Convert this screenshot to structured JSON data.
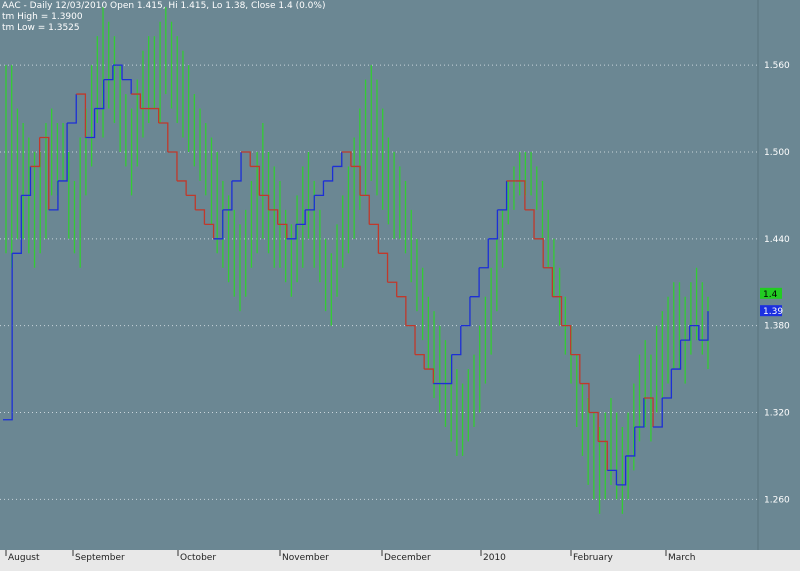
{
  "header": {
    "line1": "AAC - Daily 12/03/2010 Open 1.415, Hi 1.415, Lo 1.38, Close 1.4 (0.0%)",
    "line2": "tm High = 1.3900",
    "line3": "tm Low = 1.3525"
  },
  "colors": {
    "background": "#6b8793",
    "bar": "#33cc33",
    "trail_up": "#1c2fd6",
    "trail_down": "#c0392b",
    "grid": "#c8d4da",
    "text": "#ffffff",
    "axis_bg": "#e8e8e8",
    "tag_close": "#22cc22",
    "tag_low": "#1b2fe0"
  },
  "chart_data": {
    "type": "ohlc",
    "grid": true,
    "ylim": [
      1.225,
      1.605
    ],
    "y_ticks": [
      "1.560",
      "1.500",
      "1.440",
      "1.380",
      "1.320",
      "1.260"
    ],
    "x_labels": [
      "August",
      "September",
      "October",
      "November",
      "December",
      "2010",
      "February",
      "March"
    ],
    "price_tags": [
      {
        "label": "1.4",
        "value": 1.402,
        "color": "#22cc22"
      },
      {
        "label": "1.39",
        "value": 1.39,
        "color": "#1b2fe0"
      }
    ],
    "bars": [
      [
        1.56,
        1.43
      ],
      [
        1.56,
        1.42
      ],
      [
        1.53,
        1.44
      ],
      [
        1.52,
        1.44
      ],
      [
        1.51,
        1.43
      ],
      [
        1.5,
        1.42
      ],
      [
        1.5,
        1.43
      ],
      [
        1.52,
        1.44
      ],
      [
        1.53,
        1.47
      ],
      [
        1.52,
        1.47
      ],
      [
        1.52,
        1.48
      ],
      [
        1.5,
        1.44
      ],
      [
        1.48,
        1.43
      ],
      [
        1.51,
        1.42
      ],
      [
        1.53,
        1.47
      ],
      [
        1.56,
        1.49
      ],
      [
        1.58,
        1.52
      ],
      [
        1.6,
        1.51
      ],
      [
        1.59,
        1.53
      ],
      [
        1.58,
        1.52
      ],
      [
        1.56,
        1.5
      ],
      [
        1.54,
        1.49
      ],
      [
        1.53,
        1.47
      ],
      [
        1.55,
        1.49
      ],
      [
        1.57,
        1.51
      ],
      [
        1.58,
        1.52
      ],
      [
        1.58,
        1.53
      ],
      [
        1.59,
        1.52
      ],
      [
        1.6,
        1.54
      ],
      [
        1.59,
        1.53
      ],
      [
        1.58,
        1.52
      ],
      [
        1.57,
        1.51
      ],
      [
        1.56,
        1.5
      ],
      [
        1.54,
        1.49
      ],
      [
        1.53,
        1.48
      ],
      [
        1.52,
        1.47
      ],
      [
        1.51,
        1.45
      ],
      [
        1.5,
        1.43
      ],
      [
        1.48,
        1.42
      ],
      [
        1.47,
        1.41
      ],
      [
        1.46,
        1.4
      ],
      [
        1.45,
        1.39
      ],
      [
        1.46,
        1.4
      ],
      [
        1.48,
        1.42
      ],
      [
        1.5,
        1.43
      ],
      [
        1.52,
        1.44
      ],
      [
        1.5,
        1.43
      ],
      [
        1.49,
        1.42
      ],
      [
        1.48,
        1.42
      ],
      [
        1.46,
        1.41
      ],
      [
        1.45,
        1.4
      ],
      [
        1.47,
        1.41
      ],
      [
        1.49,
        1.42
      ],
      [
        1.5,
        1.44
      ],
      [
        1.48,
        1.42
      ],
      [
        1.46,
        1.41
      ],
      [
        1.44,
        1.39
      ],
      [
        1.43,
        1.38
      ],
      [
        1.45,
        1.4
      ],
      [
        1.47,
        1.42
      ],
      [
        1.49,
        1.43
      ],
      [
        1.51,
        1.44
      ],
      [
        1.53,
        1.46
      ],
      [
        1.55,
        1.47
      ],
      [
        1.56,
        1.48
      ],
      [
        1.55,
        1.47
      ],
      [
        1.53,
        1.46
      ],
      [
        1.51,
        1.45
      ],
      [
        1.5,
        1.44
      ],
      [
        1.49,
        1.44
      ],
      [
        1.48,
        1.43
      ],
      [
        1.46,
        1.41
      ],
      [
        1.44,
        1.39
      ],
      [
        1.42,
        1.37
      ],
      [
        1.4,
        1.35
      ],
      [
        1.39,
        1.33
      ],
      [
        1.38,
        1.32
      ],
      [
        1.37,
        1.31
      ],
      [
        1.36,
        1.3
      ],
      [
        1.35,
        1.29
      ],
      [
        1.34,
        1.29
      ],
      [
        1.35,
        1.3
      ],
      [
        1.36,
        1.31
      ],
      [
        1.38,
        1.32
      ],
      [
        1.4,
        1.34
      ],
      [
        1.42,
        1.36
      ],
      [
        1.44,
        1.39
      ],
      [
        1.46,
        1.42
      ],
      [
        1.48,
        1.45
      ],
      [
        1.49,
        1.46
      ],
      [
        1.5,
        1.47
      ],
      [
        1.5,
        1.47
      ],
      [
        1.5,
        1.47
      ],
      [
        1.49,
        1.46
      ],
      [
        1.48,
        1.44
      ],
      [
        1.46,
        1.42
      ],
      [
        1.44,
        1.4
      ],
      [
        1.42,
        1.38
      ],
      [
        1.4,
        1.36
      ],
      [
        1.38,
        1.34
      ],
      [
        1.36,
        1.31
      ],
      [
        1.34,
        1.29
      ],
      [
        1.33,
        1.27
      ],
      [
        1.32,
        1.26
      ],
      [
        1.31,
        1.25
      ],
      [
        1.32,
        1.26
      ],
      [
        1.33,
        1.27
      ],
      [
        1.32,
        1.26
      ],
      [
        1.31,
        1.25
      ],
      [
        1.32,
        1.26
      ],
      [
        1.34,
        1.28
      ],
      [
        1.36,
        1.3
      ],
      [
        1.37,
        1.31
      ],
      [
        1.36,
        1.3
      ],
      [
        1.38,
        1.32
      ],
      [
        1.39,
        1.33
      ],
      [
        1.4,
        1.34
      ],
      [
        1.41,
        1.35
      ],
      [
        1.41,
        1.35
      ],
      [
        1.4,
        1.34
      ],
      [
        1.41,
        1.36
      ],
      [
        1.42,
        1.37
      ],
      [
        1.41,
        1.36
      ],
      [
        1.4,
        1.35
      ]
    ],
    "trail": [
      {
        "v": 1.315,
        "c": "up"
      },
      {
        "v": 1.43,
        "c": "up"
      },
      {
        "v": 1.47,
        "c": "up"
      },
      {
        "v": 1.49,
        "c": "up"
      },
      {
        "v": 1.51,
        "c": "down"
      },
      {
        "v": 1.46,
        "c": "down"
      },
      {
        "v": 1.48,
        "c": "up"
      },
      {
        "v": 1.52,
        "c": "up"
      },
      {
        "v": 1.54,
        "c": "up"
      },
      {
        "v": 1.51,
        "c": "down"
      },
      {
        "v": 1.53,
        "c": "up"
      },
      {
        "v": 1.55,
        "c": "up"
      },
      {
        "v": 1.56,
        "c": "up"
      },
      {
        "v": 1.55,
        "c": "up"
      },
      {
        "v": 1.54,
        "c": "up"
      },
      {
        "v": 1.53,
        "c": "down"
      },
      {
        "v": 1.53,
        "c": "down"
      },
      {
        "v": 1.52,
        "c": "down"
      },
      {
        "v": 1.5,
        "c": "down"
      },
      {
        "v": 1.48,
        "c": "down"
      },
      {
        "v": 1.47,
        "c": "down"
      },
      {
        "v": 1.46,
        "c": "down"
      },
      {
        "v": 1.45,
        "c": "down"
      },
      {
        "v": 1.44,
        "c": "down"
      },
      {
        "v": 1.46,
        "c": "up"
      },
      {
        "v": 1.48,
        "c": "up"
      },
      {
        "v": 1.5,
        "c": "up"
      },
      {
        "v": 1.49,
        "c": "down"
      },
      {
        "v": 1.47,
        "c": "down"
      },
      {
        "v": 1.46,
        "c": "down"
      },
      {
        "v": 1.45,
        "c": "down"
      },
      {
        "v": 1.44,
        "c": "down"
      },
      {
        "v": 1.45,
        "c": "up"
      },
      {
        "v": 1.46,
        "c": "up"
      },
      {
        "v": 1.47,
        "c": "up"
      },
      {
        "v": 1.48,
        "c": "up"
      },
      {
        "v": 1.49,
        "c": "up"
      },
      {
        "v": 1.5,
        "c": "up"
      },
      {
        "v": 1.49,
        "c": "down"
      },
      {
        "v": 1.47,
        "c": "down"
      },
      {
        "v": 1.45,
        "c": "down"
      },
      {
        "v": 1.43,
        "c": "down"
      },
      {
        "v": 1.41,
        "c": "down"
      },
      {
        "v": 1.4,
        "c": "down"
      },
      {
        "v": 1.38,
        "c": "down"
      },
      {
        "v": 1.36,
        "c": "down"
      },
      {
        "v": 1.35,
        "c": "down"
      },
      {
        "v": 1.34,
        "c": "down"
      },
      {
        "v": 1.34,
        "c": "up"
      },
      {
        "v": 1.36,
        "c": "up"
      },
      {
        "v": 1.38,
        "c": "up"
      },
      {
        "v": 1.4,
        "c": "up"
      },
      {
        "v": 1.42,
        "c": "up"
      },
      {
        "v": 1.44,
        "c": "up"
      },
      {
        "v": 1.46,
        "c": "up"
      },
      {
        "v": 1.48,
        "c": "up"
      },
      {
        "v": 1.48,
        "c": "down"
      },
      {
        "v": 1.46,
        "c": "down"
      },
      {
        "v": 1.44,
        "c": "down"
      },
      {
        "v": 1.42,
        "c": "down"
      },
      {
        "v": 1.4,
        "c": "down"
      },
      {
        "v": 1.38,
        "c": "down"
      },
      {
        "v": 1.36,
        "c": "down"
      },
      {
        "v": 1.34,
        "c": "down"
      },
      {
        "v": 1.32,
        "c": "down"
      },
      {
        "v": 1.3,
        "c": "down"
      },
      {
        "v": 1.28,
        "c": "down"
      },
      {
        "v": 1.27,
        "c": "up"
      },
      {
        "v": 1.29,
        "c": "up"
      },
      {
        "v": 1.31,
        "c": "up"
      },
      {
        "v": 1.33,
        "c": "up"
      },
      {
        "v": 1.31,
        "c": "down"
      },
      {
        "v": 1.33,
        "c": "up"
      },
      {
        "v": 1.35,
        "c": "up"
      },
      {
        "v": 1.37,
        "c": "up"
      },
      {
        "v": 1.38,
        "c": "up"
      },
      {
        "v": 1.37,
        "c": "up"
      },
      {
        "v": 1.39,
        "c": "up"
      }
    ]
  }
}
